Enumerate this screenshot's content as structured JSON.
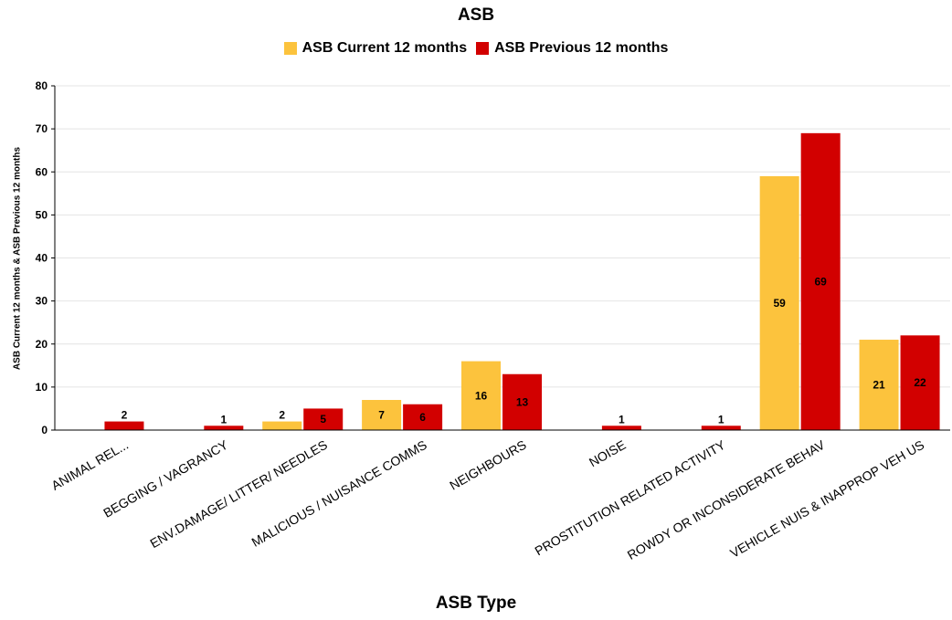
{
  "chart_data": {
    "type": "bar",
    "title": "ASB",
    "xlabel": "ASB Type",
    "ylabel": "ASB Current 12 months & ASB Previous 12 months",
    "ylim": [
      0,
      80
    ],
    "yticks": [
      0,
      10,
      20,
      30,
      40,
      50,
      60,
      70,
      80
    ],
    "grid": true,
    "legend_position": "top",
    "categories": [
      "ANIMAL REL...",
      "BEGGING / VAGRANCY",
      "ENV.DAMAGE/ LITTER/ NEEDLES",
      "MALICIOUS / NUISANCE COMMS",
      "NEIGHBOURS",
      "NOISE",
      "PROSTITUTION RELATED ACTIVITY",
      "ROWDY OR INCONSIDERATE BEHAV",
      "VEHICLE NUIS & INAPPROP VEH US"
    ],
    "series": [
      {
        "name": "ASB Current 12 months",
        "color": "#FCC33D",
        "values": [
          null,
          null,
          2,
          7,
          16,
          null,
          null,
          59,
          21
        ]
      },
      {
        "name": "ASB Previous 12 months",
        "color": "#D20000",
        "values": [
          2,
          1,
          5,
          6,
          13,
          1,
          1,
          69,
          22
        ]
      }
    ]
  }
}
